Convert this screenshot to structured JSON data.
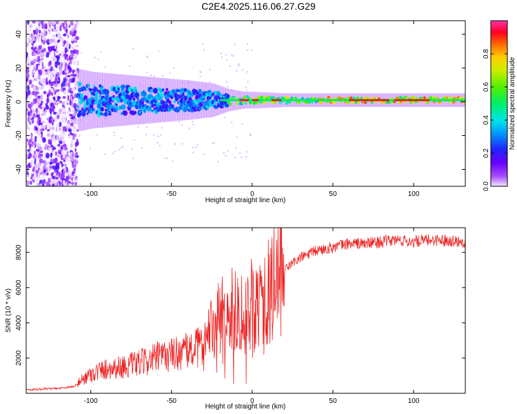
{
  "title": "C2E4.2025.116.06.27.G29",
  "chart_data": [
    {
      "type": "heatmap",
      "name": "spectrogram",
      "xlabel": "Height of straight line (km)",
      "ylabel": "Frequency (Hz)",
      "xlim": [
        -140,
        132
      ],
      "ylim": [
        -50,
        48
      ],
      "xticks": [
        -100,
        -50,
        0,
        50,
        100
      ],
      "yticks": [
        -40,
        -20,
        0,
        20,
        40
      ],
      "noise_region_end_km": -108,
      "carrier_frequency_hz": 1,
      "colorbar": {
        "label": "Normalized spectral amplitude",
        "range": [
          0,
          1
        ],
        "ticks": [
          0.0,
          0.2,
          0.4,
          0.6,
          0.8
        ]
      },
      "spread_profile": {
        "x": [
          -108,
          -100,
          -80,
          -60,
          -40,
          -25,
          -15,
          -5,
          0,
          20,
          60,
          100,
          132
        ],
        "half_width_hz": [
          10,
          9,
          8,
          7,
          6,
          5,
          3,
          2,
          2,
          1.5,
          1.5,
          1.5,
          1.5
        ]
      }
    },
    {
      "type": "line",
      "name": "snr",
      "xlabel": "Height of straight line (km)",
      "ylabel": "SNR (10 * v/v)",
      "xlim": [
        -140,
        132
      ],
      "ylim": [
        0,
        9400
      ],
      "xticks": [
        -100,
        -50,
        0,
        50,
        100
      ],
      "yticks": [
        2000,
        4000,
        6000,
        8000
      ],
      "color": "#ee2222",
      "series": [
        {
          "name": "SNR",
          "x": [
            -140,
            -120,
            -110,
            -105,
            -100,
            -90,
            -80,
            -70,
            -60,
            -50,
            -40,
            -30,
            -25,
            -20,
            -15,
            -10,
            -5,
            0,
            5,
            10,
            15,
            20,
            25,
            30,
            40,
            50,
            60,
            70,
            80,
            90,
            100,
            110,
            120,
            132
          ],
          "values": [
            200,
            280,
            400,
            800,
            1100,
            1400,
            1500,
            1700,
            2000,
            2200,
            2400,
            2700,
            3500,
            4300,
            4200,
            5000,
            4600,
            5000,
            5400,
            5700,
            6500,
            7000,
            7400,
            7700,
            8100,
            8300,
            8500,
            8500,
            8600,
            8700,
            8600,
            8700,
            8700,
            8600
          ]
        }
      ]
    }
  ]
}
